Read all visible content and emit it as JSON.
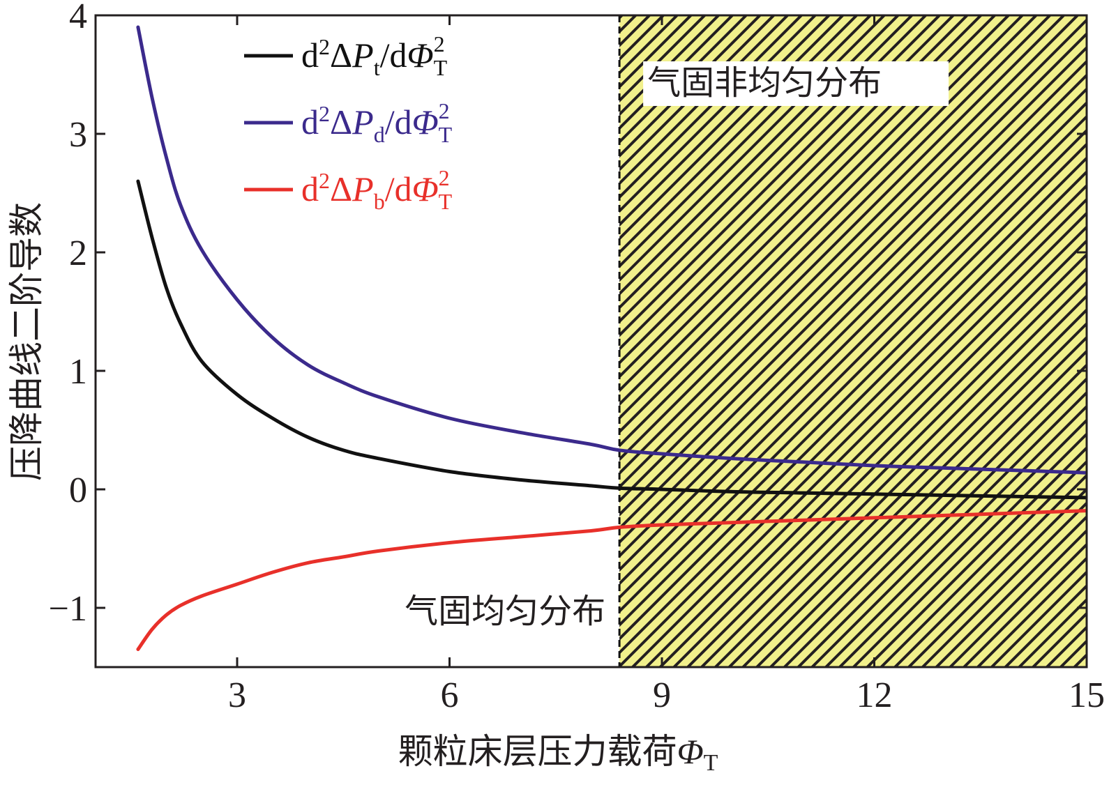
{
  "chart_data": {
    "type": "line",
    "xlabel": "颗粒床层压力载荷",
    "xlabel_symbol": "Φ",
    "xlabel_symbol_sub": "T",
    "ylabel": "压降曲线二阶导数",
    "xlim": [
      1,
      15
    ],
    "ylim": [
      -1.5,
      4
    ],
    "xticks": [
      3,
      6,
      9,
      12,
      15
    ],
    "yticks": [
      -1,
      0,
      1,
      2,
      3,
      4
    ],
    "ytick_labels": [
      "−1",
      "0",
      "1",
      "2",
      "3",
      "4"
    ],
    "x": [
      1.6,
      1.8,
      2.0,
      2.2,
      2.5,
      3.0,
      3.5,
      4.0,
      4.5,
      5.0,
      6.0,
      7.0,
      8.0,
      8.4,
      9.0,
      10.0,
      11.0,
      12.0,
      13.0,
      14.0,
      15.0
    ],
    "series": [
      {
        "name": "d2ΔPt/dΦT2",
        "legend": {
          "pre": "d",
          "sup1": "2",
          "mid": "Δ",
          "var": "P",
          "sub": "t",
          "slash": "/d",
          "phi": "Φ",
          "phisub": "T",
          "phisup": "2"
        },
        "color": "#111111",
        "values": [
          2.6,
          2.12,
          1.7,
          1.4,
          1.08,
          0.8,
          0.6,
          0.44,
          0.33,
          0.26,
          0.15,
          0.08,
          0.03,
          0.01,
          0.0,
          -0.02,
          -0.03,
          -0.04,
          -0.05,
          -0.06,
          -0.07
        ]
      },
      {
        "name": "d2ΔPd/dΦT2",
        "legend": {
          "pre": "d",
          "sup1": "2",
          "mid": "Δ",
          "var": "P",
          "sub": "d",
          "slash": "/d",
          "phi": "Φ",
          "phisub": "T",
          "phisup": "2"
        },
        "color": "#3b2a8c",
        "values": [
          3.9,
          3.3,
          2.8,
          2.4,
          2.02,
          1.6,
          1.28,
          1.05,
          0.9,
          0.78,
          0.6,
          0.48,
          0.38,
          0.33,
          0.3,
          0.26,
          0.23,
          0.2,
          0.18,
          0.16,
          0.14
        ]
      },
      {
        "name": "d2ΔPb/dΦT2",
        "legend": {
          "pre": "d",
          "sup1": "2",
          "mid": "Δ",
          "var": "P",
          "sub": "b",
          "slash": "/d",
          "phi": "Φ",
          "phisub": "T",
          "phisup": "2"
        },
        "color": "#e8302a",
        "values": [
          -1.35,
          -1.18,
          -1.06,
          -0.98,
          -0.9,
          -0.8,
          -0.7,
          -0.62,
          -0.57,
          -0.52,
          -0.45,
          -0.4,
          -0.35,
          -0.32,
          -0.3,
          -0.28,
          -0.26,
          -0.24,
          -0.22,
          -0.2,
          -0.18
        ]
      }
    ],
    "region": {
      "x_start": 8.4,
      "x_end": 15,
      "fill_color": "#f1f08c",
      "hatch_color": "#231f20",
      "label": "气固非均匀分布"
    },
    "region_left_label": "气固均匀分布"
  }
}
